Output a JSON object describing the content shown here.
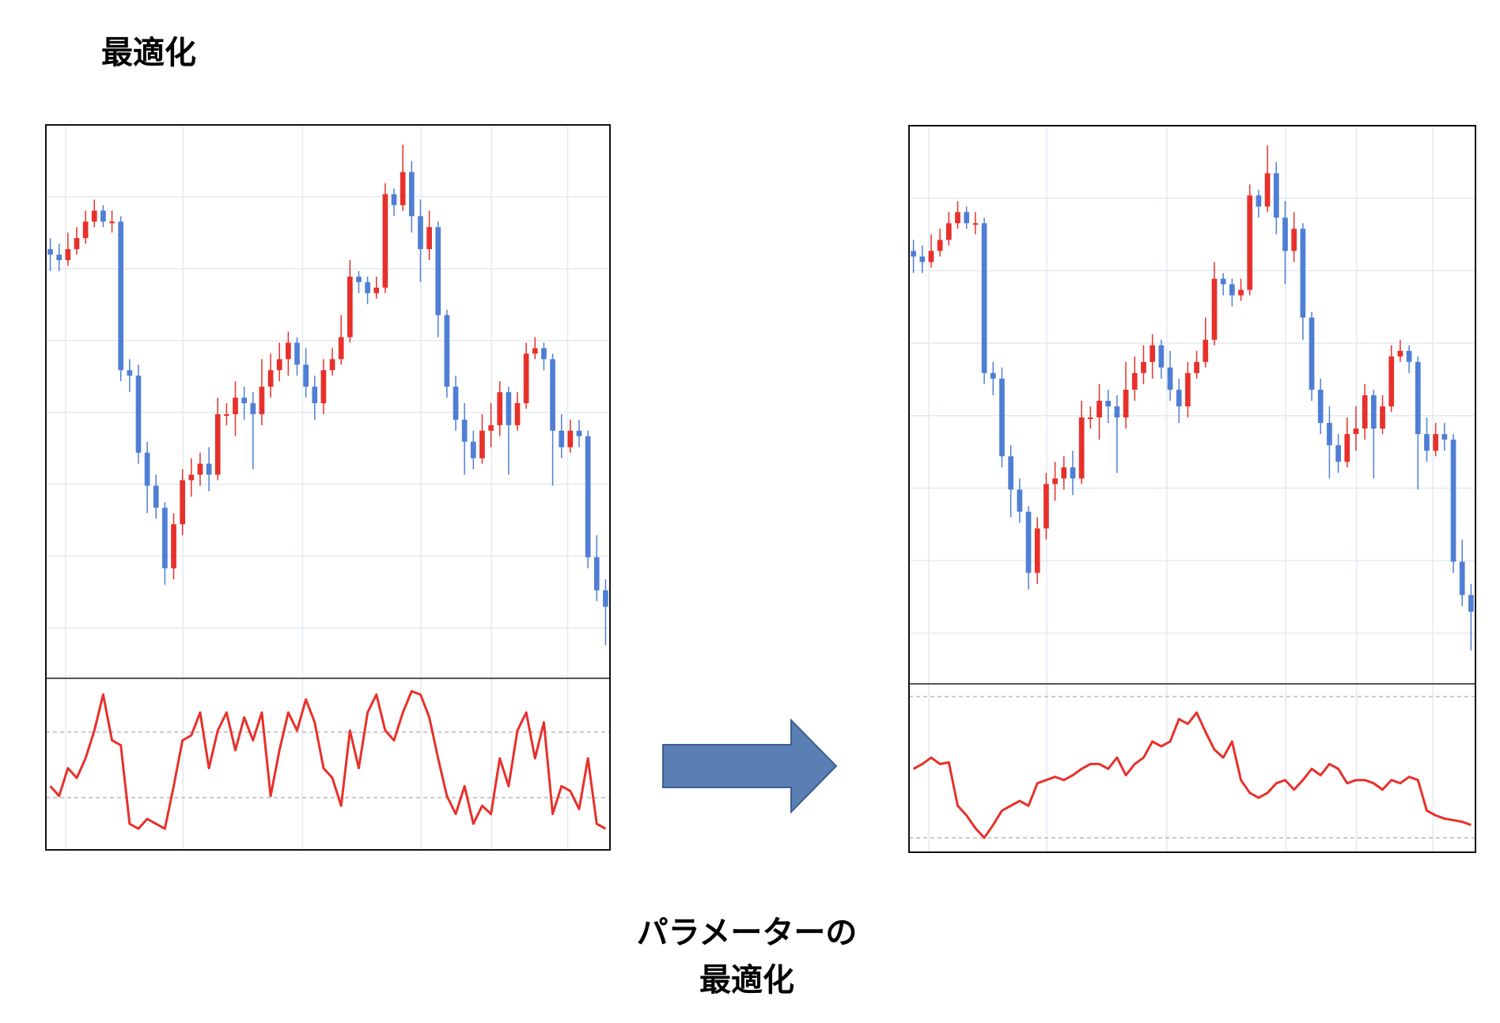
{
  "heading": "最適化",
  "caption": [
    "パラメーターの",
    "最適化"
  ],
  "chart_data": [
    {
      "type": "candlestick",
      "ylim": [
        0,
        100
      ],
      "grid": true,
      "up_color": "#e8302a",
      "down_color": "#4f7fd4",
      "open": [
        78,
        77,
        76,
        78,
        80,
        83,
        85,
        83,
        83,
        56,
        55,
        41,
        35,
        31,
        20,
        28,
        36,
        37,
        39,
        37,
        48,
        48,
        51,
        50,
        48,
        53,
        56,
        58,
        61,
        57,
        53,
        50,
        56,
        58,
        62,
        73,
        72,
        70,
        71,
        88,
        86,
        92,
        84,
        78,
        82,
        66,
        53,
        47,
        43,
        40,
        45,
        46,
        52,
        46,
        50,
        59,
        60,
        58,
        45,
        42,
        45,
        44,
        22,
        16
      ],
      "high": [
        80,
        79,
        81,
        82,
        85,
        87,
        86,
        85,
        84,
        58,
        57,
        43,
        37,
        32,
        30,
        38,
        40,
        41,
        42,
        51,
        50,
        54,
        53,
        52,
        58,
        59,
        61,
        63,
        62,
        60,
        55,
        58,
        60,
        66,
        76,
        74,
        73,
        73,
        90,
        89,
        97,
        94,
        87,
        85,
        83,
        67,
        55,
        50,
        45,
        48,
        50,
        54,
        53,
        52,
        61,
        62,
        61,
        59,
        48,
        47,
        47,
        45,
        26,
        18
      ],
      "low": [
        74,
        74,
        75,
        77,
        79,
        82,
        82,
        81,
        54,
        52,
        39,
        30,
        29,
        17,
        18,
        26,
        33,
        35,
        34,
        36,
        46,
        44,
        47,
        38,
        46,
        51,
        54,
        55,
        55,
        51,
        47,
        48,
        55,
        57,
        61,
        70,
        68,
        69,
        70,
        84,
        85,
        81,
        72,
        76,
        62,
        51,
        45,
        37,
        38,
        39,
        42,
        44,
        37,
        45,
        49,
        58,
        56,
        35,
        40,
        41,
        42,
        20,
        14,
        6
      ],
      "close": [
        77,
        76,
        78,
        80,
        83,
        85,
        83,
        83,
        56,
        55,
        41,
        35,
        31,
        20,
        28,
        36,
        37,
        39,
        37,
        48,
        48,
        51,
        50,
        48,
        53,
        56,
        58,
        61,
        57,
        53,
        50,
        56,
        58,
        62,
        73,
        72,
        70,
        71,
        88,
        86,
        92,
        84,
        78,
        82,
        66,
        53,
        47,
        43,
        40,
        45,
        46,
        52,
        46,
        50,
        59,
        60,
        58,
        45,
        42,
        45,
        44,
        22,
        16,
        13
      ],
      "indicator": {
        "type": "line",
        "color": "#e8302a",
        "ylim": [
          0,
          100
        ],
        "levels": [
          70,
          30
        ],
        "values": [
          37,
          31,
          48,
          42,
          54,
          71,
          93,
          65,
          62,
          14,
          11,
          17,
          14,
          11,
          37,
          65,
          68,
          82,
          48,
          71,
          82,
          59,
          79,
          65,
          82,
          31,
          59,
          82,
          71,
          90,
          76,
          48,
          42,
          25,
          71,
          48,
          82,
          93,
          71,
          65,
          82,
          95,
          93,
          79,
          54,
          31,
          20,
          37,
          14,
          25,
          20,
          54,
          37,
          71,
          82,
          54,
          76,
          20,
          37,
          34,
          23,
          54,
          14,
          11
        ]
      }
    },
    {
      "type": "candlestick",
      "ylim": [
        0,
        100
      ],
      "grid": true,
      "up_color": "#e8302a",
      "down_color": "#4f7fd4",
      "open": [
        78,
        77,
        76,
        78,
        80,
        83,
        85,
        83,
        83,
        56,
        55,
        41,
        35,
        31,
        20,
        28,
        36,
        37,
        39,
        37,
        48,
        48,
        51,
        50,
        48,
        53,
        56,
        58,
        61,
        57,
        53,
        50,
        56,
        58,
        62,
        73,
        72,
        70,
        71,
        88,
        86,
        92,
        84,
        78,
        82,
        66,
        53,
        47,
        43,
        40,
        45,
        46,
        52,
        46,
        50,
        59,
        60,
        58,
        45,
        42,
        45,
        44,
        22,
        16
      ],
      "high": [
        80,
        79,
        81,
        82,
        85,
        87,
        86,
        85,
        84,
        58,
        57,
        43,
        37,
        32,
        30,
        38,
        40,
        41,
        42,
        51,
        50,
        54,
        53,
        52,
        58,
        59,
        61,
        63,
        62,
        60,
        55,
        58,
        60,
        66,
        76,
        74,
        73,
        73,
        90,
        89,
        97,
        94,
        87,
        85,
        83,
        67,
        55,
        50,
        45,
        48,
        50,
        54,
        53,
        52,
        61,
        62,
        61,
        59,
        48,
        47,
        47,
        45,
        26,
        18
      ],
      "low": [
        74,
        74,
        75,
        77,
        79,
        82,
        82,
        81,
        54,
        52,
        39,
        30,
        29,
        17,
        18,
        26,
        33,
        35,
        34,
        36,
        46,
        44,
        47,
        38,
        46,
        51,
        54,
        55,
        55,
        51,
        47,
        48,
        55,
        57,
        61,
        70,
        68,
        69,
        70,
        84,
        85,
        81,
        72,
        76,
        62,
        51,
        45,
        37,
        38,
        39,
        42,
        44,
        37,
        45,
        49,
        58,
        56,
        35,
        40,
        41,
        42,
        20,
        14,
        6
      ],
      "close": [
        77,
        76,
        78,
        80,
        83,
        85,
        83,
        83,
        56,
        55,
        41,
        35,
        31,
        20,
        28,
        36,
        37,
        39,
        37,
        48,
        48,
        51,
        50,
        48,
        53,
        56,
        58,
        61,
        57,
        53,
        50,
        56,
        58,
        62,
        73,
        72,
        70,
        71,
        88,
        86,
        92,
        84,
        78,
        82,
        66,
        53,
        47,
        43,
        40,
        45,
        46,
        52,
        46,
        50,
        59,
        60,
        58,
        45,
        42,
        45,
        44,
        22,
        16,
        13
      ],
      "indicator": {
        "type": "line",
        "color": "#e8302a",
        "ylim": [
          0,
          100
        ],
        "levels": [
          95,
          7
        ],
        "values": [
          50,
          53,
          57,
          53,
          54,
          27,
          21,
          13,
          7,
          15,
          24,
          27,
          30,
          27,
          41,
          43,
          45,
          43,
          46,
          50,
          53,
          53,
          50,
          57,
          46,
          53,
          57,
          67,
          64,
          67,
          81,
          78,
          85,
          73,
          62,
          57,
          67,
          43,
          35,
          32,
          35,
          41,
          43,
          37,
          43,
          50,
          46,
          53,
          50,
          41,
          43,
          43,
          41,
          37,
          43,
          41,
          45,
          43,
          24,
          21,
          19,
          18,
          17,
          15
        ]
      }
    }
  ]
}
